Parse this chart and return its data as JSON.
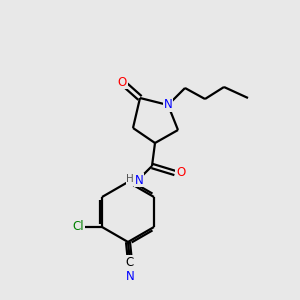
{
  "background_color": "#e8e8e8",
  "bond_color": "#000000",
  "atom_colors": {
    "O": "#ff0000",
    "N": "#0000ff",
    "Cl": "#008000",
    "C": "#000000",
    "H": "#555555"
  },
  "figsize": [
    3.0,
    3.0
  ],
  "dpi": 100
}
